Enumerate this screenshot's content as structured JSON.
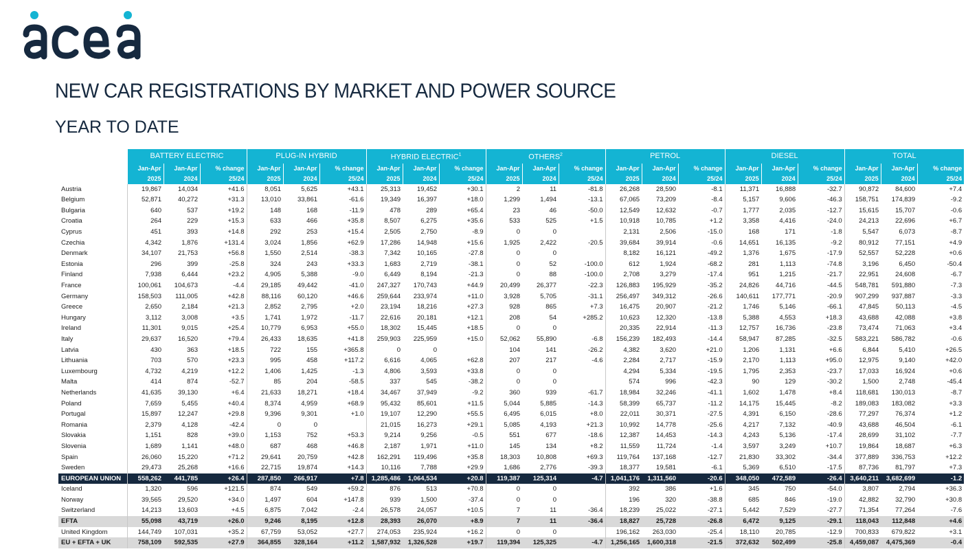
{
  "brand": {
    "name": "acea",
    "color": "#16293f",
    "accent": "#14b4d3"
  },
  "title": "NEW CAR REGISTRATIONS BY MARKET AND POWER SOURCE",
  "subtitle": "YEAR TO DATE",
  "table": {
    "groups": [
      {
        "label": "BATTERY ELECTRIC",
        "sup": ""
      },
      {
        "label": "PLUG-IN HYBRID",
        "sup": ""
      },
      {
        "label": "HYBRID ELECTRIC",
        "sup": "1"
      },
      {
        "label": "OTHERS",
        "sup": "2"
      },
      {
        "label": "PETROL",
        "sup": ""
      },
      {
        "label": "DIESEL",
        "sup": ""
      },
      {
        "label": "TOTAL",
        "sup": ""
      }
    ],
    "subheaders": {
      "period": "Jan-Apr",
      "change": "% change",
      "year_current": "2025",
      "year_prev": "2024",
      "change_period": "25/24"
    },
    "rows": [
      {
        "name": "Austria",
        "cls": "",
        "v": [
          "19,867",
          "14,034",
          "+41.6",
          "8,051",
          "5,625",
          "+43.1",
          "25,313",
          "19,452",
          "+30.1",
          "2",
          "11",
          "-81.8",
          "26,268",
          "28,590",
          "-8.1",
          "11,371",
          "16,888",
          "-32.7",
          "90,872",
          "84,600",
          "+7.4"
        ]
      },
      {
        "name": "Belgium",
        "cls": "",
        "v": [
          "52,871",
          "40,272",
          "+31.3",
          "13,010",
          "33,861",
          "-61.6",
          "19,349",
          "16,397",
          "+18.0",
          "1,299",
          "1,494",
          "-13.1",
          "67,065",
          "73,209",
          "-8.4",
          "5,157",
          "9,606",
          "-46.3",
          "158,751",
          "174,839",
          "-9.2"
        ]
      },
      {
        "name": "Bulgaria",
        "cls": "",
        "v": [
          "640",
          "537",
          "+19.2",
          "148",
          "168",
          "-11.9",
          "478",
          "289",
          "+65.4",
          "23",
          "46",
          "-50.0",
          "12,549",
          "12,632",
          "-0.7",
          "1,777",
          "2,035",
          "-12.7",
          "15,615",
          "15,707",
          "-0.6"
        ]
      },
      {
        "name": "Croatia",
        "cls": "",
        "v": [
          "264",
          "229",
          "+15.3",
          "633",
          "466",
          "+35.8",
          "8,507",
          "6,275",
          "+35.6",
          "533",
          "525",
          "+1.5",
          "10,918",
          "10,785",
          "+1.2",
          "3,358",
          "4,416",
          "-24.0",
          "24,213",
          "22,696",
          "+6.7"
        ]
      },
      {
        "name": "Cyprus",
        "cls": "",
        "v": [
          "451",
          "393",
          "+14.8",
          "292",
          "253",
          "+15.4",
          "2,505",
          "2,750",
          "-8.9",
          "0",
          "0",
          "",
          "2,131",
          "2,506",
          "-15.0",
          "168",
          "171",
          "-1.8",
          "5,547",
          "6,073",
          "-8.7"
        ]
      },
      {
        "name": "Czechia",
        "cls": "",
        "v": [
          "4,342",
          "1,876",
          "+131.4",
          "3,024",
          "1,856",
          "+62.9",
          "17,286",
          "14,948",
          "+15.6",
          "1,925",
          "2,422",
          "-20.5",
          "39,684",
          "39,914",
          "-0.6",
          "14,651",
          "16,135",
          "-9.2",
          "80,912",
          "77,151",
          "+4.9"
        ]
      },
      {
        "name": "Denmark",
        "cls": "",
        "v": [
          "34,107",
          "21,753",
          "+56.8",
          "1,550",
          "2,514",
          "-38.3",
          "7,342",
          "10,165",
          "-27.8",
          "0",
          "0",
          "",
          "8,182",
          "16,121",
          "-49.2",
          "1,376",
          "1,675",
          "-17.9",
          "52,557",
          "52,228",
          "+0.6"
        ]
      },
      {
        "name": "Estonia",
        "cls": "",
        "v": [
          "296",
          "399",
          "-25.8",
          "324",
          "243",
          "+33.3",
          "1,683",
          "2,719",
          "-38.1",
          "0",
          "52",
          "-100.0",
          "612",
          "1,924",
          "-68.2",
          "281",
          "1,113",
          "-74.8",
          "3,196",
          "6,450",
          "-50.4"
        ]
      },
      {
        "name": "Finland",
        "cls": "",
        "v": [
          "7,938",
          "6,444",
          "+23.2",
          "4,905",
          "5,388",
          "-9.0",
          "6,449",
          "8,194",
          "-21.3",
          "0",
          "88",
          "-100.0",
          "2,708",
          "3,279",
          "-17.4",
          "951",
          "1,215",
          "-21.7",
          "22,951",
          "24,608",
          "-6.7"
        ]
      },
      {
        "name": "France",
        "cls": "",
        "v": [
          "100,061",
          "104,673",
          "-4.4",
          "29,185",
          "49,442",
          "-41.0",
          "247,327",
          "170,743",
          "+44.9",
          "20,499",
          "26,377",
          "-22.3",
          "126,883",
          "195,929",
          "-35.2",
          "24,826",
          "44,716",
          "-44.5",
          "548,781",
          "591,880",
          "-7.3"
        ]
      },
      {
        "name": "Germany",
        "cls": "",
        "v": [
          "158,503",
          "111,005",
          "+42.8",
          "88,116",
          "60,120",
          "+46.6",
          "259,644",
          "233,974",
          "+11.0",
          "3,928",
          "5,705",
          "-31.1",
          "256,497",
          "349,312",
          "-26.6",
          "140,611",
          "177,771",
          "-20.9",
          "907,299",
          "937,887",
          "-3.3"
        ]
      },
      {
        "name": "Greece",
        "cls": "",
        "v": [
          "2,650",
          "2,184",
          "+21.3",
          "2,852",
          "2,795",
          "+2.0",
          "23,194",
          "18,216",
          "+27.3",
          "928",
          "865",
          "+7.3",
          "16,475",
          "20,907",
          "-21.2",
          "1,746",
          "5,146",
          "-66.1",
          "47,845",
          "50,113",
          "-4.5"
        ]
      },
      {
        "name": "Hungary",
        "cls": "",
        "v": [
          "3,112",
          "3,008",
          "+3.5",
          "1,741",
          "1,972",
          "-11.7",
          "22,616",
          "20,181",
          "+12.1",
          "208",
          "54",
          "+285.2",
          "10,623",
          "12,320",
          "-13.8",
          "5,388",
          "4,553",
          "+18.3",
          "43,688",
          "42,088",
          "+3.8"
        ]
      },
      {
        "name": "Ireland",
        "cls": "",
        "v": [
          "11,301",
          "9,015",
          "+25.4",
          "10,779",
          "6,953",
          "+55.0",
          "18,302",
          "15,445",
          "+18.5",
          "0",
          "0",
          "",
          "20,335",
          "22,914",
          "-11.3",
          "12,757",
          "16,736",
          "-23.8",
          "73,474",
          "71,063",
          "+3.4"
        ]
      },
      {
        "name": "Italy",
        "cls": "",
        "v": [
          "29,637",
          "16,520",
          "+79.4",
          "26,433",
          "18,635",
          "+41.8",
          "259,903",
          "225,959",
          "+15.0",
          "52,062",
          "55,890",
          "-6.8",
          "156,239",
          "182,493",
          "-14.4",
          "58,947",
          "87,285",
          "-32.5",
          "583,221",
          "586,782",
          "-0.6"
        ]
      },
      {
        "name": "Latvia",
        "cls": "",
        "v": [
          "430",
          "363",
          "+18.5",
          "722",
          "155",
          "+365.8",
          "0",
          "0",
          "",
          "104",
          "141",
          "-26.2",
          "4,382",
          "3,620",
          "+21.0",
          "1,206",
          "1,131",
          "+6.6",
          "6,844",
          "5,410",
          "+26.5"
        ]
      },
      {
        "name": "Lithuania",
        "cls": "",
        "v": [
          "703",
          "570",
          "+23.3",
          "995",
          "458",
          "+117.2",
          "6,616",
          "4,065",
          "+62.8",
          "207",
          "217",
          "-4.6",
          "2,284",
          "2,717",
          "-15.9",
          "2,170",
          "1,113",
          "+95.0",
          "12,975",
          "9,140",
          "+42.0"
        ]
      },
      {
        "name": "Luxembourg",
        "cls": "",
        "v": [
          "4,732",
          "4,219",
          "+12.2",
          "1,406",
          "1,425",
          "-1.3",
          "4,806",
          "3,593",
          "+33.8",
          "0",
          "0",
          "",
          "4,294",
          "5,334",
          "-19.5",
          "1,795",
          "2,353",
          "-23.7",
          "17,033",
          "16,924",
          "+0.6"
        ]
      },
      {
        "name": "Malta",
        "cls": "",
        "v": [
          "414",
          "874",
          "-52.7",
          "85",
          "204",
          "-58.5",
          "337",
          "545",
          "-38.2",
          "0",
          "0",
          "",
          "574",
          "996",
          "-42.3",
          "90",
          "129",
          "-30.2",
          "1,500",
          "2,748",
          "-45.4"
        ]
      },
      {
        "name": "Netherlands",
        "cls": "",
        "v": [
          "41,635",
          "39,130",
          "+6.4",
          "21,633",
          "18,271",
          "+18.4",
          "34,467",
          "37,949",
          "-9.2",
          "360",
          "939",
          "-61.7",
          "18,984",
          "32,246",
          "-41.1",
          "1,602",
          "1,478",
          "+8.4",
          "118,681",
          "130,013",
          "-8.7"
        ]
      },
      {
        "name": "Poland",
        "cls": "",
        "v": [
          "7,659",
          "5,455",
          "+40.4",
          "8,374",
          "4,959",
          "+68.9",
          "95,432",
          "85,601",
          "+11.5",
          "5,044",
          "5,885",
          "-14.3",
          "58,399",
          "65,737",
          "-11.2",
          "14,175",
          "15,445",
          "-8.2",
          "189,083",
          "183,082",
          "+3.3"
        ]
      },
      {
        "name": "Portugal",
        "cls": "",
        "v": [
          "15,897",
          "12,247",
          "+29.8",
          "9,396",
          "9,301",
          "+1.0",
          "19,107",
          "12,290",
          "+55.5",
          "6,495",
          "6,015",
          "+8.0",
          "22,011",
          "30,371",
          "-27.5",
          "4,391",
          "6,150",
          "-28.6",
          "77,297",
          "76,374",
          "+1.2"
        ]
      },
      {
        "name": "Romania",
        "cls": "",
        "v": [
          "2,379",
          "4,128",
          "-42.4",
          "0",
          "0",
          "",
          "21,015",
          "16,273",
          "+29.1",
          "5,085",
          "4,193",
          "+21.3",
          "10,992",
          "14,778",
          "-25.6",
          "4,217",
          "7,132",
          "-40.9",
          "43,688",
          "46,504",
          "-6.1"
        ]
      },
      {
        "name": "Slovakia",
        "cls": "",
        "v": [
          "1,151",
          "828",
          "+39.0",
          "1,153",
          "752",
          "+53.3",
          "9,214",
          "9,256",
          "-0.5",
          "551",
          "677",
          "-18.6",
          "12,387",
          "14,453",
          "-14.3",
          "4,243",
          "5,136",
          "-17.4",
          "28,699",
          "31,102",
          "-7.7"
        ]
      },
      {
        "name": "Slovenia",
        "cls": "",
        "v": [
          "1,689",
          "1,141",
          "+48.0",
          "687",
          "468",
          "+46.8",
          "2,187",
          "1,971",
          "+11.0",
          "145",
          "134",
          "+8.2",
          "11,559",
          "11,724",
          "-1.4",
          "3,597",
          "3,249",
          "+10.7",
          "19,864",
          "18,687",
          "+6.3"
        ]
      },
      {
        "name": "Spain",
        "cls": "",
        "v": [
          "26,060",
          "15,220",
          "+71.2",
          "29,641",
          "20,759",
          "+42.8",
          "162,291",
          "119,496",
          "+35.8",
          "18,303",
          "10,808",
          "+69.3",
          "119,764",
          "137,168",
          "-12.7",
          "21,830",
          "33,302",
          "-34.4",
          "377,889",
          "336,753",
          "+12.2"
        ]
      },
      {
        "name": "Sweden",
        "cls": "",
        "v": [
          "29,473",
          "25,268",
          "+16.6",
          "22,715",
          "19,874",
          "+14.3",
          "10,116",
          "7,788",
          "+29.9",
          "1,686",
          "2,776",
          "-39.3",
          "18,377",
          "19,581",
          "-6.1",
          "5,369",
          "6,510",
          "-17.5",
          "87,736",
          "81,797",
          "+7.3"
        ]
      },
      {
        "name": "EUROPEAN UNION",
        "cls": "eu",
        "v": [
          "558,262",
          "441,785",
          "+26.4",
          "287,850",
          "266,917",
          "+7.8",
          "1,285,486",
          "1,064,534",
          "+20.8",
          "119,387",
          "125,314",
          "-4.7",
          "1,041,176",
          "1,311,560",
          "-20.6",
          "348,050",
          "472,589",
          "-26.4",
          "3,640,211",
          "3,682,699",
          "-1.2"
        ]
      },
      {
        "name": "Iceland",
        "cls": "",
        "v": [
          "1,320",
          "596",
          "+121.5",
          "874",
          "549",
          "+59.2",
          "876",
          "513",
          "+70.8",
          "0",
          "0",
          "",
          "392",
          "386",
          "+1.6",
          "345",
          "750",
          "-54.0",
          "3,807",
          "2,794",
          "+36.3"
        ]
      },
      {
        "name": "Norway",
        "cls": "",
        "v": [
          "39,565",
          "29,520",
          "+34.0",
          "1,497",
          "604",
          "+147.8",
          "939",
          "1,500",
          "-37.4",
          "0",
          "0",
          "",
          "196",
          "320",
          "-38.8",
          "685",
          "846",
          "-19.0",
          "42,882",
          "32,790",
          "+30.8"
        ]
      },
      {
        "name": "Switzerland",
        "cls": "",
        "v": [
          "14,213",
          "13,603",
          "+4.5",
          "6,875",
          "7,042",
          "-2.4",
          "26,578",
          "24,057",
          "+10.5",
          "7",
          "11",
          "-36.4",
          "18,239",
          "25,022",
          "-27.1",
          "5,442",
          "7,529",
          "-27.7",
          "71,354",
          "77,264",
          "-7.6"
        ]
      },
      {
        "name": "EFTA",
        "cls": "efta",
        "v": [
          "55,098",
          "43,719",
          "+26.0",
          "9,246",
          "8,195",
          "+12.8",
          "28,393",
          "26,070",
          "+8.9",
          "7",
          "11",
          "-36.4",
          "18,827",
          "25,728",
          "-26.8",
          "6,472",
          "9,125",
          "-29.1",
          "118,043",
          "112,848",
          "+4.6"
        ]
      },
      {
        "name": "United Kingdom",
        "cls": "",
        "v": [
          "144,749",
          "107,031",
          "+35.2",
          "67,759",
          "53,052",
          "+27.7",
          "274,053",
          "235,924",
          "+16.2",
          "0",
          "0",
          "",
          "196,162",
          "263,030",
          "-25.4",
          "18,110",
          "20,785",
          "-12.9",
          "700,833",
          "679,822",
          "+3.1"
        ]
      },
      {
        "name": "EU + EFTA + UK",
        "cls": "total",
        "v": [
          "758,109",
          "592,535",
          "+27.9",
          "364,855",
          "328,164",
          "+11.2",
          "1,587,932",
          "1,326,528",
          "+19.7",
          "119,394",
          "125,325",
          "-4.7",
          "1,256,165",
          "1,600,318",
          "-21.5",
          "372,632",
          "502,499",
          "-25.8",
          "4,459,087",
          "4,475,369",
          "-0.4"
        ]
      }
    ]
  }
}
